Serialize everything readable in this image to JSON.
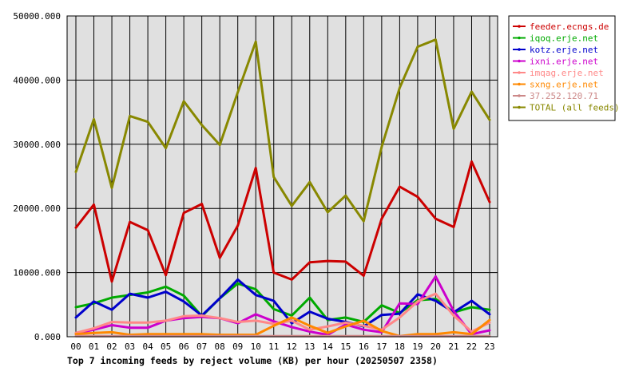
{
  "chart_data": {
    "type": "line",
    "title": "Top 7 incoming feeds by reject volume (KB) per hour (20250507 2358)",
    "categories": [
      "00",
      "01",
      "02",
      "03",
      "04",
      "05",
      "06",
      "07",
      "08",
      "09",
      "10",
      "11",
      "12",
      "13",
      "14",
      "15",
      "16",
      "17",
      "18",
      "19",
      "20",
      "21",
      "22",
      "23"
    ],
    "ylim": [
      0,
      50000
    ],
    "y_ticks": [
      0,
      10000,
      20000,
      30000,
      40000,
      50000
    ],
    "y_tick_labels": [
      "0.000",
      "10000.000",
      "20000.000",
      "30000.000",
      "40000.000",
      "50000.000"
    ],
    "grid": true,
    "legend_position": "top-right",
    "series": [
      {
        "name": "feeder.ecngs.de",
        "color": "#cc0000",
        "values": [
          17000,
          20600,
          8600,
          17900,
          16600,
          9600,
          19300,
          20700,
          12300,
          17300,
          26300,
          10000,
          8900,
          11600,
          11800,
          11700,
          9500,
          18400,
          23400,
          21800,
          18400,
          17100,
          27300,
          21000
        ]
      },
      {
        "name": "iqoq.erje.net",
        "color": "#00aa00",
        "values": [
          4600,
          5200,
          6100,
          6500,
          6900,
          7800,
          6400,
          3200,
          6000,
          8300,
          7400,
          4300,
          3300,
          6100,
          2600,
          3000,
          2300,
          4900,
          3700,
          5700,
          5900,
          3800,
          4600,
          4200
        ]
      },
      {
        "name": "kotz.erje.net",
        "color": "#0000cc",
        "values": [
          3000,
          5500,
          4200,
          6700,
          6100,
          7000,
          5500,
          3300,
          6000,
          8900,
          6500,
          5600,
          2100,
          3900,
          2800,
          2300,
          1600,
          3400,
          3600,
          6600,
          5600,
          3800,
          5600,
          3500
        ]
      },
      {
        "name": "ixni.erje.net",
        "color": "#cc00cc",
        "values": [
          500,
          1100,
          1800,
          1400,
          1400,
          2500,
          2900,
          3100,
          2900,
          2100,
          3500,
          2400,
          1500,
          800,
          300,
          1900,
          1100,
          700,
          5200,
          5100,
          9400,
          4000,
          400,
          1000
        ]
      },
      {
        "name": "imqag.erje.net",
        "color": "#ff8888",
        "values": [
          600,
          1300,
          2300,
          2200,
          2200,
          2500,
          3200,
          3300,
          2900,
          2300,
          2500,
          2000,
          2500,
          1100,
          1600,
          2200,
          1700,
          1100,
          3000,
          5500,
          6700,
          3300,
          800,
          2200
        ]
      },
      {
        "name": "sxng.erje.net",
        "color": "#ff8800",
        "values": [
          400,
          600,
          700,
          300,
          400,
          400,
          400,
          400,
          300,
          300,
          300,
          1700,
          3000,
          1700,
          600,
          1600,
          2500,
          900,
          100,
          400,
          400,
          700,
          400,
          2600
        ]
      },
      {
        "name": "37.252.120.71",
        "color": "#cc8888",
        "values": [
          100,
          100,
          100,
          100,
          100,
          100,
          100,
          100,
          100,
          100,
          100,
          100,
          100,
          100,
          100,
          100,
          100,
          100,
          100,
          100,
          100,
          100,
          100,
          100
        ]
      },
      {
        "name": "TOTAL (all feeds)",
        "color": "#888800",
        "values": [
          25700,
          33900,
          23200,
          34400,
          33500,
          29400,
          36700,
          33000,
          29900,
          38100,
          46000,
          24900,
          20400,
          24100,
          19400,
          22000,
          18000,
          29600,
          38800,
          45200,
          46300,
          32400,
          38200,
          33800
        ]
      }
    ]
  }
}
